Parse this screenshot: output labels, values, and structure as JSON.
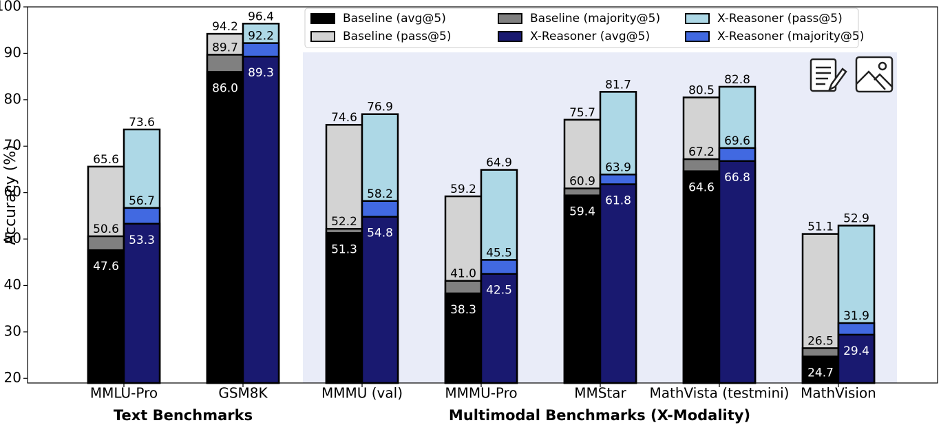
{
  "chart_data": {
    "type": "bar",
    "y_label": "Accuracy (%)",
    "categories": [
      "MMLU-Pro",
      "GSM8K",
      "MMMU (val)",
      "MMMU-Pro",
      "MMStar",
      "MathVista (testmini)",
      "MathVision"
    ],
    "annotations": [
      "Text Benchmarks",
      "Multimodal Benchmarks (X-Modality)"
    ],
    "series": [
      {
        "name": "Baseline (avg@5)",
        "color": "#000000",
        "values": [
          47.6,
          86.0,
          51.3,
          38.3,
          59.4,
          64.6,
          24.7
        ],
        "value_labels": [
          "47.6",
          "86.0",
          "51.3",
          "38.3",
          "59.4",
          "64.6",
          "24.7"
        ]
      },
      {
        "name": "Baseline (pass@5)",
        "color": "#d3d3d3",
        "values": [
          65.6,
          94.2,
          74.6,
          59.2,
          75.7,
          80.5,
          51.1
        ],
        "value_labels": [
          "65.6",
          "94.2",
          "74.6",
          "59.2",
          "75.7",
          "80.5",
          "51.1"
        ]
      },
      {
        "name": "Baseline (majority@5)",
        "color": "#808080",
        "values": [
          50.6,
          89.7,
          52.2,
          41.0,
          60.9,
          67.2,
          26.5
        ],
        "value_labels": [
          "50.6",
          "89.7",
          "52.2",
          "41.0",
          "60.9",
          "67.2",
          "26.5"
        ]
      },
      {
        "name": "X-Reasoner (avg@5)",
        "color": "#191970",
        "values": [
          53.3,
          89.3,
          54.8,
          42.5,
          61.8,
          66.8,
          29.4
        ],
        "value_labels": [
          "53.3",
          "89.3",
          "54.8",
          "42.5",
          "61.8",
          "66.8",
          "29.4"
        ]
      },
      {
        "name": "X-Reasoner (pass@5)",
        "color": "#add8e6",
        "values": [
          73.6,
          96.4,
          76.9,
          64.9,
          81.7,
          82.8,
          52.9
        ],
        "value_labels": [
          "73.6",
          "96.4",
          "76.9",
          "64.9",
          "81.7",
          "82.8",
          "52.9"
        ]
      },
      {
        "name": "X-Reasoner (majority@5)",
        "color": "#4169e1",
        "values": [
          56.7,
          92.2,
          58.2,
          45.5,
          63.9,
          69.6,
          31.9
        ],
        "value_labels": [
          "56.7",
          "92.2",
          "58.2",
          "45.5",
          "63.9",
          "69.6",
          "31.9"
        ]
      }
    ],
    "ylim": [
      19,
      100
    ],
    "yticks": [
      20,
      30,
      40,
      50,
      60,
      70,
      80,
      90,
      100
    ],
    "grid": false
  }
}
